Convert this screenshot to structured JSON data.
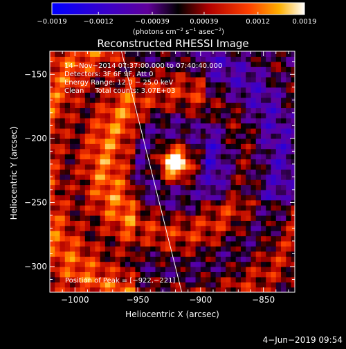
{
  "chart_data": {
    "type": "heatmap",
    "title": "Reconstructed RHESSI Image",
    "xlabel": "Heliocentric X (arcsec)",
    "ylabel": "Heliocentric Y (arcsec)",
    "xlim": [
      -1020,
      -825
    ],
    "ylim": [
      -320,
      -132
    ],
    "x_ticks": [
      -1000,
      -950,
      -900,
      -850
    ],
    "y_ticks": [
      -300,
      -250,
      -200,
      -150
    ],
    "x_tick_labels": [
      "−1000",
      "−950",
      "−900",
      "−850"
    ],
    "y_tick_labels": [
      "−300",
      "−250",
      "−200",
      "−150"
    ],
    "colorbar": {
      "ticks": [
        -0.0019,
        -0.0012,
        -0.00039,
        0.00039,
        0.0012,
        0.0019
      ],
      "tick_labels": [
        "−0.0019",
        "−0.0012",
        "−0.00039",
        "0.00039",
        "0.0012",
        "0.0019"
      ],
      "unit_prefix": "(photons cm",
      "unit_exp1": "−2",
      "unit_mid": " s",
      "unit_exp2": "−1",
      "unit_mid2": " asec",
      "unit_exp3": "−2",
      "unit_suffix": ")",
      "range": [
        -0.0019,
        0.0019
      ]
    },
    "annotations": [
      "14−Nov−2014 07:37:00.000 to 07:40:40.000",
      "Detectors: 3F 6F 9F, Att 0",
      "Energy Range: 12.0 − 25.0 keV",
      "Clean     Total counts: 3.07E+03"
    ],
    "peak_label": "Position of Peak = [−922,−221]",
    "peak": {
      "x": -922,
      "y": -221
    },
    "limb_line": [
      [
        -963,
        -132
      ],
      [
        -915,
        -320
      ]
    ],
    "timestamp": "4−Jun−2019 09:54"
  }
}
